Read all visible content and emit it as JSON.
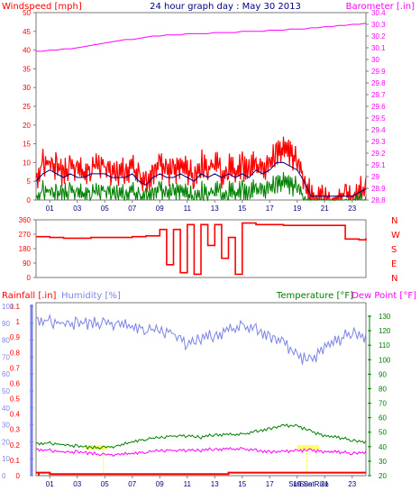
{
  "title": "24 hour graph day : May 30 2013",
  "colors": {
    "wind": "#ff0000",
    "wind_avg": "#000080",
    "wind_dark": "#008000",
    "barometer": "#ff00ff",
    "direction": "#ff0000",
    "rainfall": "#ff0000",
    "humidity": "#7b84e6",
    "temperature": "#008000",
    "dewpoint": "#ff00ff",
    "sunmarker": "#ffff66",
    "frame": "#7a7a7a"
  },
  "x_ticks": [
    "01",
    "03",
    "05",
    "07",
    "09",
    "11",
    "13",
    "15",
    "17",
    "19",
    "21",
    "23"
  ],
  "sun_labels": [
    "Sun Set",
    "Sun Rise"
  ],
  "chart_data": [
    {
      "type": "line",
      "title": "Windspeed / Barometer",
      "left_label": "Windspeed [mph]",
      "right_label": "Barometer [.in]",
      "left_ticks": [
        "0",
        "5",
        "10",
        "15",
        "20",
        "25",
        "30",
        "35",
        "40",
        "45",
        "50"
      ],
      "right_ticks": [
        "28.8",
        "28.9",
        "29",
        "29.1",
        "29.2",
        "29.3",
        "29.4",
        "29.5",
        "29.6",
        "29.7",
        "29.8",
        "29.9",
        "30",
        "30.1",
        "30.2",
        "30.3",
        "30.4"
      ],
      "ylim_left": [
        0,
        50
      ],
      "ylim_right": [
        28.8,
        30.4
      ],
      "x_hours": [
        0,
        0.5,
        1,
        1.5,
        2,
        2.5,
        3,
        3.5,
        4,
        4.5,
        5,
        5.5,
        6,
        6.5,
        7,
        7.5,
        8,
        8.5,
        9,
        9.5,
        10,
        10.5,
        11,
        11.5,
        12,
        12.5,
        13,
        13.5,
        14,
        14.5,
        15,
        15.5,
        16,
        16.5,
        17,
        17.5,
        18,
        18.5,
        19,
        19.5,
        20,
        20.5,
        21,
        21.5,
        22,
        22.5,
        23,
        23.5,
        24
      ],
      "series": [
        {
          "name": "wind_gust",
          "values": [
            8,
            12,
            12,
            11,
            9,
            11,
            10,
            9,
            11,
            12,
            11,
            9,
            9,
            10,
            11,
            8,
            6,
            9,
            11,
            10,
            9,
            11,
            10,
            8,
            12,
            10,
            12,
            9,
            11,
            9,
            11,
            10,
            12,
            10,
            12,
            15,
            15,
            14,
            12,
            8,
            3,
            2,
            3,
            2,
            3,
            3,
            2,
            4,
            6
          ]
        },
        {
          "name": "wind_avg",
          "values": [
            5,
            7,
            8,
            7,
            6,
            7,
            6,
            6,
            7,
            7,
            7,
            6,
            6,
            6,
            7,
            5,
            4,
            6,
            7,
            6,
            6,
            7,
            6,
            5,
            7,
            6,
            7,
            6,
            7,
            6,
            7,
            6,
            8,
            7,
            8,
            10,
            10,
            9,
            8,
            5,
            1,
            1,
            1,
            1,
            1,
            1,
            1,
            2,
            3
          ]
        },
        {
          "name": "wind_low",
          "values": [
            2,
            4,
            4,
            3,
            3,
            4,
            3,
            3,
            4,
            4,
            4,
            3,
            3,
            3,
            4,
            2,
            2,
            3,
            4,
            3,
            3,
            4,
            3,
            2,
            4,
            3,
            4,
            3,
            4,
            3,
            4,
            3,
            5,
            4,
            5,
            6,
            6,
            5,
            5,
            2,
            0,
            0,
            0,
            0,
            0,
            0,
            0,
            1,
            1
          ]
        },
        {
          "name": "barometer",
          "values": [
            30.07,
            30.07,
            30.08,
            30.08,
            30.09,
            30.09,
            30.1,
            30.11,
            30.12,
            30.13,
            30.14,
            30.15,
            30.16,
            30.17,
            30.17,
            30.18,
            30.19,
            30.2,
            30.2,
            30.21,
            30.21,
            30.21,
            30.22,
            30.22,
            30.22,
            30.22,
            30.23,
            30.23,
            30.23,
            30.23,
            30.24,
            30.24,
            30.24,
            30.24,
            30.25,
            30.25,
            30.25,
            30.26,
            30.26,
            30.26,
            30.27,
            30.27,
            30.28,
            30.28,
            30.29,
            30.29,
            30.3,
            30.3,
            30.31
          ]
        }
      ]
    },
    {
      "type": "line",
      "title": "Wind Direction",
      "left_ticks": [
        "0",
        "90",
        "180",
        "270",
        "360"
      ],
      "right_labels": [
        "N",
        "W",
        "S",
        "E",
        "N"
      ],
      "ylim": [
        0,
        360
      ],
      "x_hours": [
        0,
        1,
        2,
        3,
        4,
        5,
        6,
        7,
        8,
        9,
        9.5,
        10,
        10.5,
        11,
        11.5,
        12,
        12.5,
        13,
        13.5,
        14,
        14.5,
        15,
        16,
        17,
        18,
        19,
        20,
        21,
        22,
        22.5,
        23,
        23.5,
        24
      ],
      "series": [
        {
          "name": "direction",
          "values": [
            255,
            250,
            245,
            245,
            250,
            250,
            250,
            255,
            260,
            300,
            80,
            300,
            30,
            330,
            20,
            330,
            200,
            330,
            120,
            250,
            20,
            340,
            330,
            330,
            325,
            325,
            325,
            325,
            325,
            240,
            240,
            235,
            245
          ]
        }
      ]
    },
    {
      "type": "line",
      "title": "Rainfall / Humidity / Temperature / Dew Point",
      "left_label": "Rainfall [.in]",
      "humidity_label": "Humidity [%]",
      "right_label": "Temperature [°F]",
      "dew_label": "Dew Point [°F]",
      "rain_ticks": [
        "0",
        "0.1",
        "0.2",
        "0.3",
        "0.4",
        "0.5",
        "0.6",
        "0.7",
        "0.8",
        "0.9",
        "1",
        "1.1"
      ],
      "humidity_ticks": [
        "0",
        "10",
        "20",
        "30",
        "40",
        "50",
        "60",
        "70",
        "80",
        "90",
        "100"
      ],
      "temp_ticks": [
        "20",
        "30",
        "40",
        "50",
        "60",
        "70",
        "80",
        "90",
        "100",
        "110",
        "120",
        "130"
      ],
      "ylim_rain": [
        0,
        1.1
      ],
      "ylim_humidity": [
        0,
        100
      ],
      "ylim_temp": [
        20,
        130
      ],
      "x_hours": [
        0,
        1,
        2,
        3,
        4,
        5,
        6,
        7,
        8,
        9,
        10,
        11,
        12,
        13,
        14,
        15,
        16,
        17,
        18,
        19,
        20,
        21,
        22,
        23,
        24
      ],
      "series": [
        {
          "name": "humidity",
          "values": [
            95,
            93,
            92,
            92,
            92,
            92,
            91,
            90,
            89,
            88,
            86,
            79,
            83,
            85,
            88,
            90,
            88,
            84,
            80,
            73,
            69,
            78,
            82,
            87,
            84
          ]
        },
        {
          "name": "temperature",
          "values": [
            43,
            43,
            42,
            41,
            40,
            40,
            41,
            44,
            46,
            47,
            48,
            48,
            47,
            49,
            49,
            49,
            51,
            53,
            55,
            55,
            51,
            48,
            47,
            45,
            44
          ]
        },
        {
          "name": "dewpoint",
          "values": [
            39,
            38,
            37,
            37,
            36,
            35,
            35,
            36,
            37,
            38,
            38,
            38,
            38,
            39,
            39,
            39,
            38,
            37,
            37,
            38,
            38,
            37,
            37,
            36,
            37
          ]
        },
        {
          "name": "rainfall",
          "values": [
            0.02,
            0.01,
            0.01,
            0.01,
            0.01,
            0.01,
            0.01,
            0.01,
            0.01,
            0.01,
            0.01,
            0.01,
            0.01,
            0.01,
            0.02,
            0.02,
            0.02,
            0.02,
            0.02,
            0.02,
            0.02,
            0.02,
            0.02,
            0.02,
            0.02
          ]
        }
      ]
    }
  ]
}
